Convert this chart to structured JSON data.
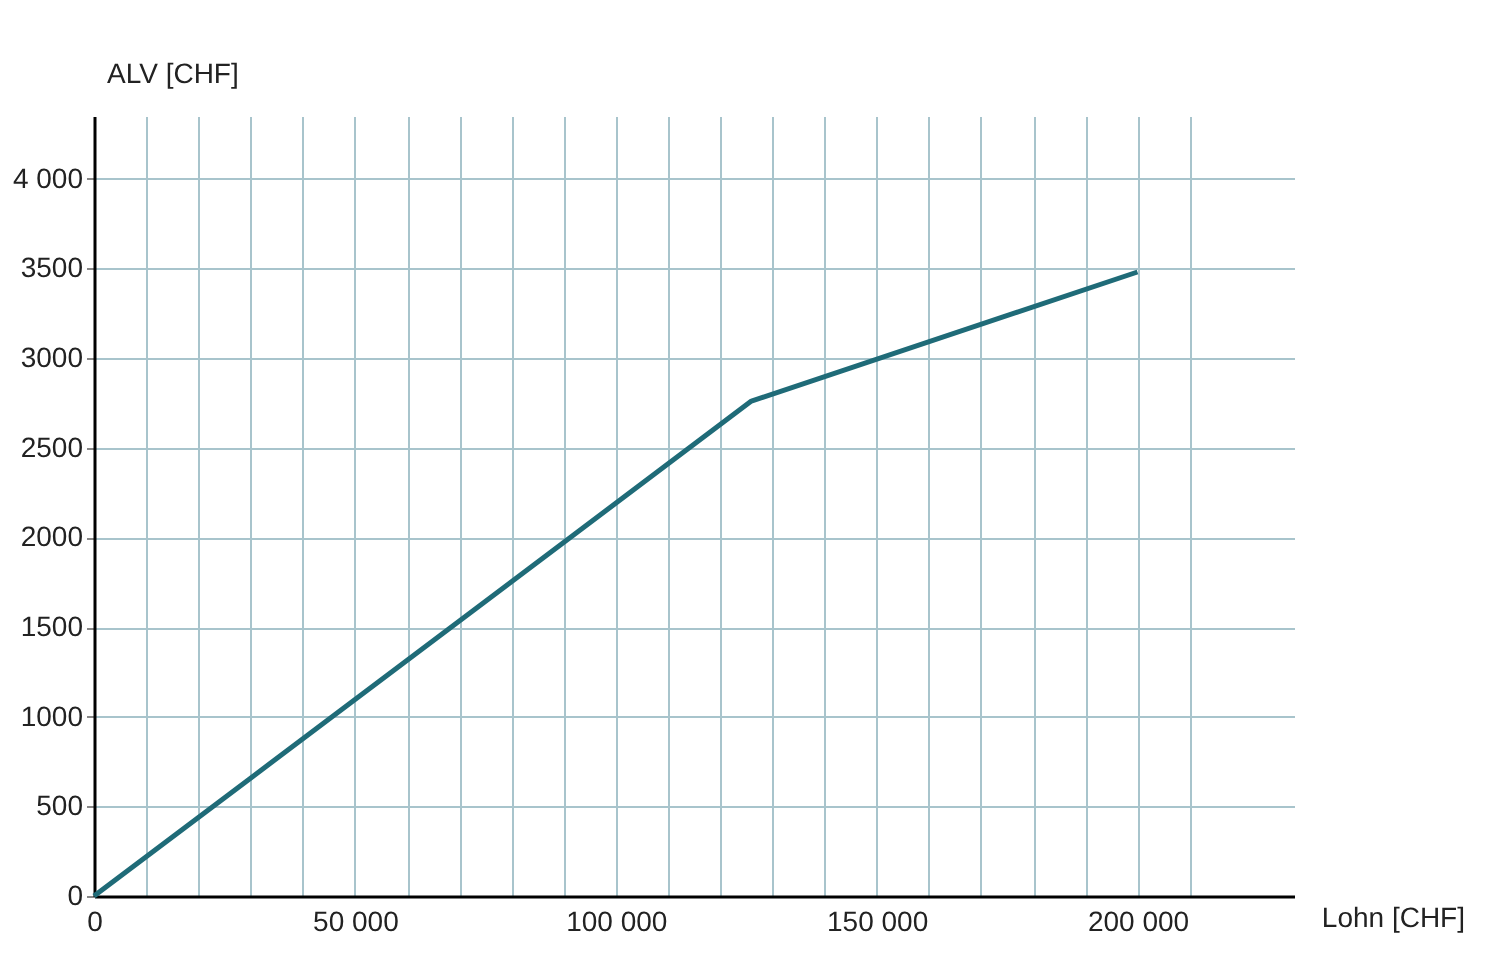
{
  "chart_data": {
    "type": "line",
    "xlabel": "Lohn [CHF]",
    "ylabel": "ALV [CHF]",
    "x": [
      0,
      126000,
      200000
    ],
    "series": [
      {
        "color": "#1f6b78",
        "values": [
          0,
          2760,
          3480
        ]
      }
    ],
    "xlim": [
      0,
      230000
    ],
    "ylim": [
      0,
      4350
    ],
    "xticks": [
      0,
      {
        "value": 10000,
        "label": null
      },
      {
        "value": 20000,
        "label": null
      },
      {
        "value": 30000,
        "label": null
      },
      {
        "value": 40000,
        "label": null
      },
      {
        "value": 50000,
        "label": "50 000"
      },
      {
        "value": 60000,
        "label": null
      },
      {
        "value": 70000,
        "label": null
      },
      {
        "value": 80000,
        "label": null
      },
      {
        "value": 90000,
        "label": null
      },
      {
        "value": 100000,
        "label": "100 000"
      },
      {
        "value": 110000,
        "label": null
      },
      {
        "value": 120000,
        "label": null
      },
      {
        "value": 130000,
        "label": null
      },
      {
        "value": 140000,
        "label": null
      },
      {
        "value": 150000,
        "label": "150 000"
      },
      {
        "value": 160000,
        "label": null
      },
      {
        "value": 170000,
        "label": null
      },
      {
        "value": 180000,
        "label": null
      },
      {
        "value": 190000,
        "label": null
      },
      {
        "value": 200000,
        "label": "200 000"
      },
      {
        "value": 210000,
        "label": null
      }
    ],
    "yticks": [
      0,
      500,
      1000,
      1500,
      2000,
      2500,
      3000,
      3500,
      {
        "value": 4000,
        "label": "4 000"
      }
    ],
    "grid": true,
    "marker": "none",
    "line_style": "solid"
  }
}
